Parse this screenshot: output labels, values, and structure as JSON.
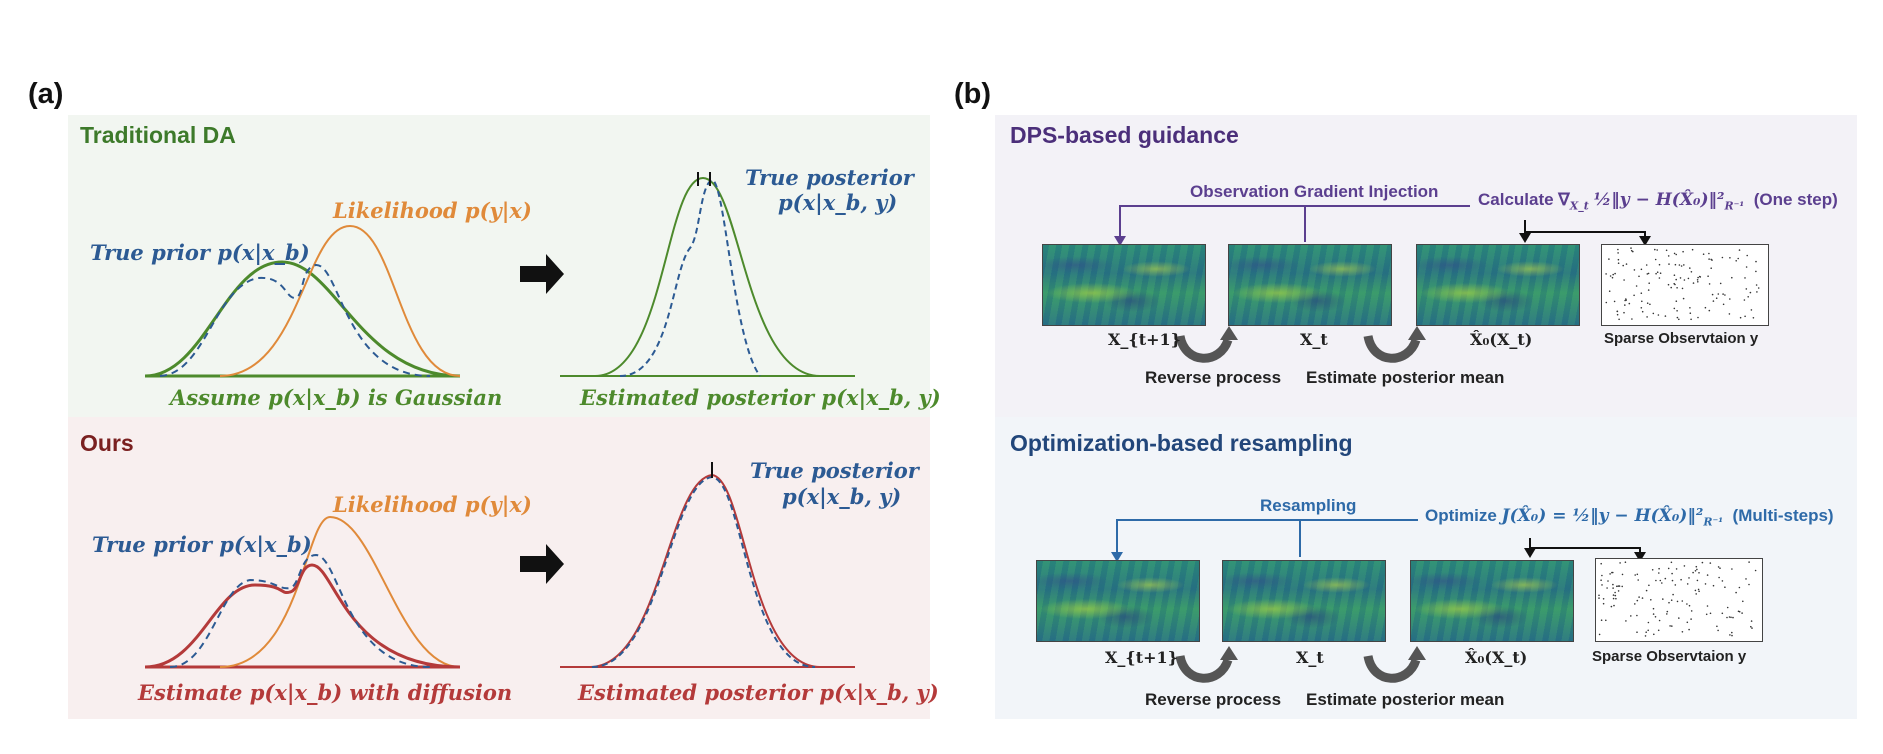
{
  "panel_a": {
    "letter": "(a)",
    "traditional": {
      "title": "Traditional DA",
      "likelihood": "Likelihood p(y|x)",
      "true_prior": "True prior p(x|x_b)",
      "assume": "Assume p(x|x_b) is Gaussian",
      "true_posterior_1": "True posterior",
      "true_posterior_2": "p(x|x_b, y)",
      "estimated_posterior": "Estimated posterior p(x|x_b, y)"
    },
    "ours": {
      "title": "Ours",
      "likelihood": "Likelihood p(y|x)",
      "true_prior": "True prior p(x|x_b)",
      "estimate": "Estimate p(x|x_b) with diffusion",
      "true_posterior_1": "True posterior",
      "true_posterior_2": "p(x|x_b, y)",
      "estimated_posterior": "Estimated posterior p(x|x_b, y)"
    }
  },
  "panel_b": {
    "letter": "(b)",
    "dps": {
      "title": "DPS-based guidance",
      "injection_label": "Observation Gradient Injection",
      "calc_prefix": "Calculate ∇",
      "calc_sub": "X_t",
      "calc_expr": "½‖y − H(X̂₀)‖²",
      "calc_norm_sub": "R⁻¹",
      "calc_suffix": "(One step)",
      "map_labels": [
        "X_{t+1}",
        "X_t",
        "X̂₀(X_t)",
        "Sparse Observtaion y"
      ],
      "reverse": "Reverse process",
      "estimate_mean": "Estimate posterior mean"
    },
    "opt": {
      "title": "Optimization-based resampling",
      "resampling_label": "Resampling",
      "optimize_prefix": "Optimize",
      "optimize_expr": "J(X̂₀) = ½‖y − H(X̂₀)‖²",
      "optimize_norm_sub": "R⁻¹",
      "optimize_suffix": "(Multi-steps)",
      "map_labels": [
        "X_{t+1}",
        "X_t",
        "X̂₀(X_t)",
        "Sparse Observtaion y"
      ],
      "reverse": "Reverse process",
      "estimate_mean": "Estimate posterior mean"
    }
  },
  "colors": {
    "prior_blue": "#2c5a93",
    "likelihood_orange": "#e08a3a",
    "gaussian_green": "#4d8a2c",
    "diffusion_red": "#b43a3a",
    "dps_purple": "#5b3f8f",
    "opt_blue": "#2e6aa8"
  }
}
